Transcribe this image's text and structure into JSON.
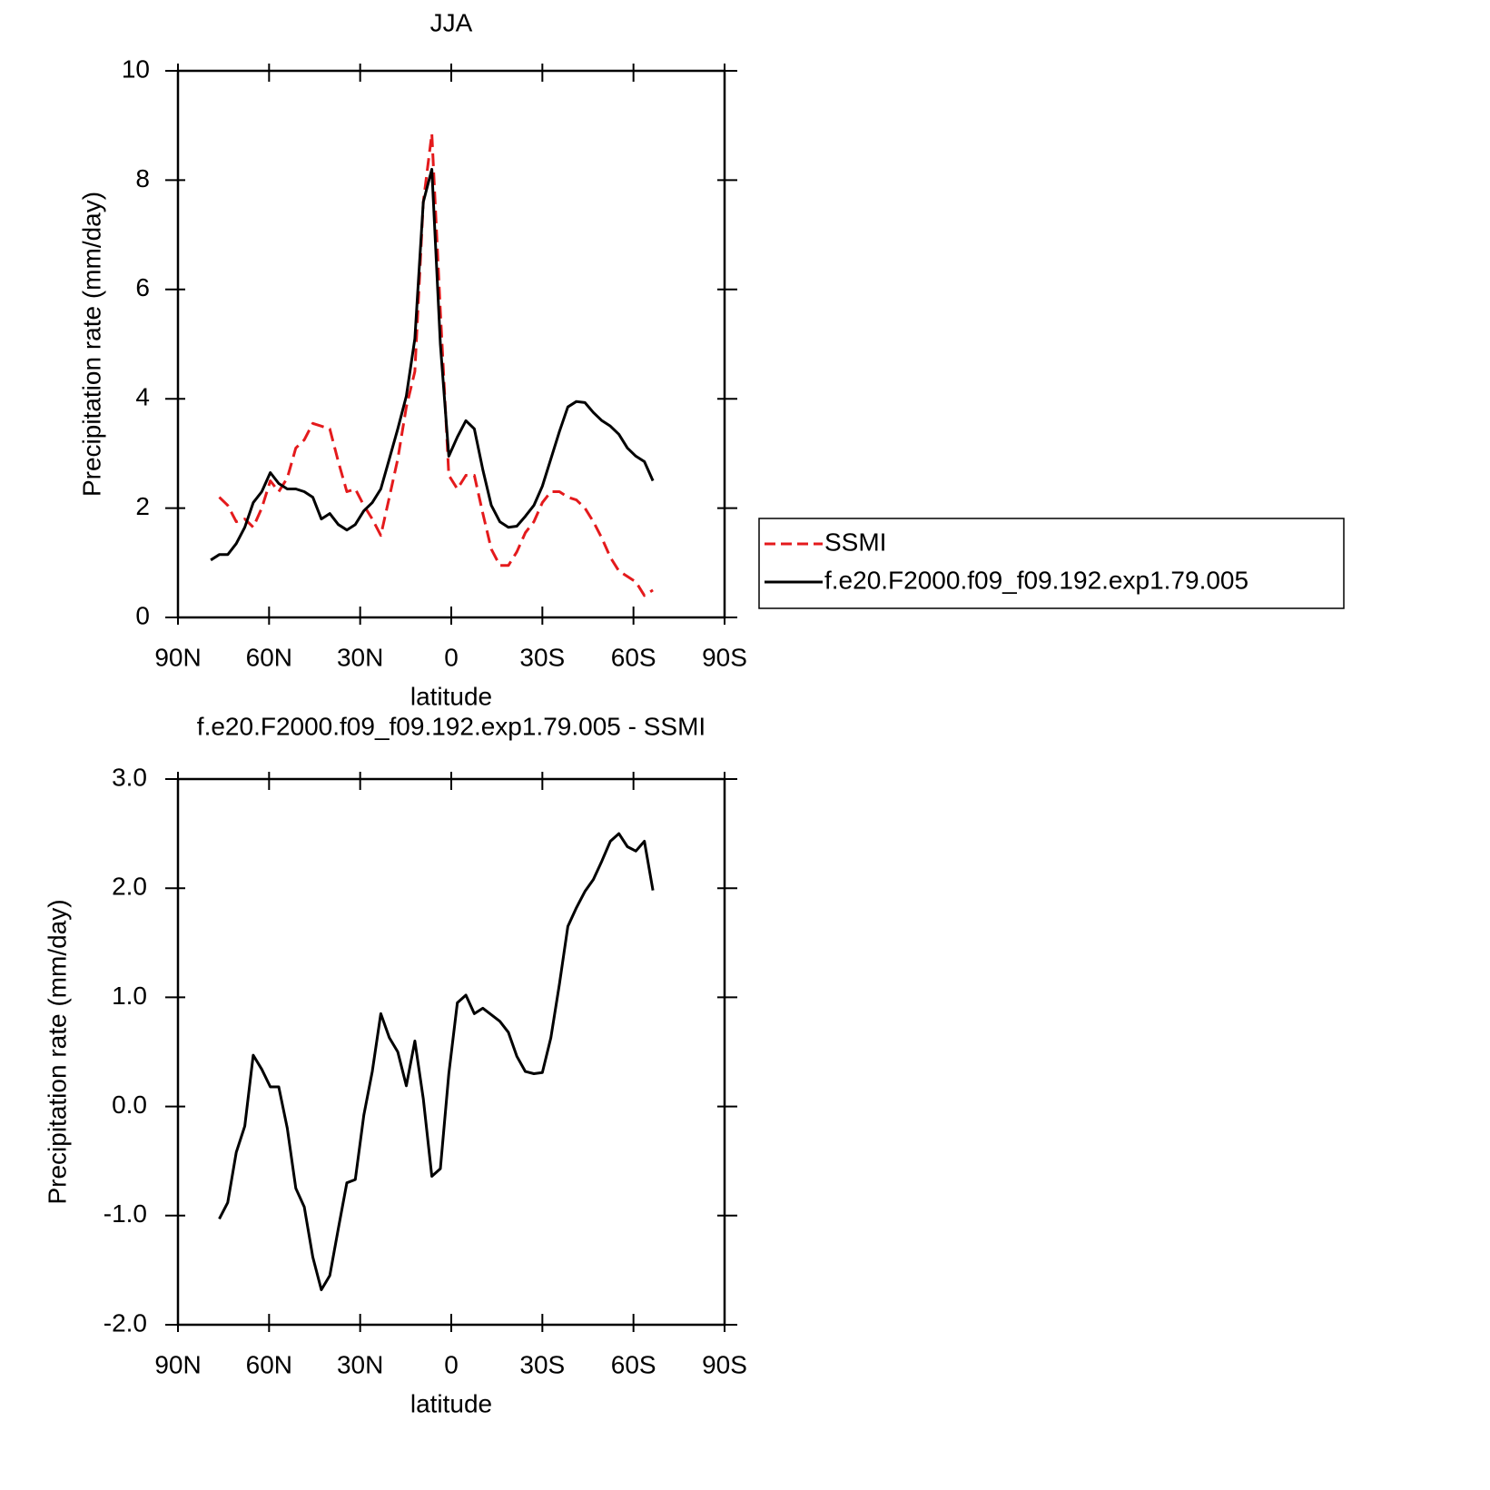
{
  "chart_data": [
    {
      "type": "line",
      "title": "JJA",
      "xlabel": "latitude",
      "ylabel": "Precipitation rate (mm/day)",
      "x": [
        79.2,
        76.4,
        73.6,
        70.8,
        68.0,
        65.2,
        62.4,
        59.6,
        56.8,
        54.0,
        51.2,
        48.4,
        45.6,
        42.8,
        40.0,
        37.2,
        34.4,
        31.6,
        28.8,
        26.0,
        23.2,
        20.4,
        17.6,
        14.8,
        12.0,
        9.2,
        6.4,
        3.6,
        0.8,
        -2.0,
        -4.8,
        -7.6,
        -10.4,
        -13.2,
        -16.0,
        -18.8,
        -21.6,
        -24.4,
        -27.2,
        -30.0,
        -32.8,
        -35.6,
        -38.4,
        -41.2,
        -44.0,
        -46.8,
        -49.6,
        -52.4,
        -55.2,
        -58.0,
        -60.8,
        -63.6,
        -66.4
      ],
      "series": [
        {
          "name": "SSMI",
          "color": "#e41a1c",
          "dash": true,
          "values": [
            null,
            2.2,
            2.05,
            1.75,
            1.8,
            1.65,
            2.0,
            2.5,
            2.3,
            2.55,
            3.1,
            3.25,
            3.55,
            3.5,
            3.45,
            2.85,
            2.3,
            2.35,
            2.05,
            1.8,
            1.5,
            2.2,
            2.9,
            3.85,
            4.5,
            7.6,
            8.85,
            5.6,
            2.6,
            2.35,
            2.6,
            2.6,
            1.9,
            1.25,
            0.95,
            0.95,
            1.2,
            1.55,
            1.75,
            2.1,
            2.3,
            2.3,
            2.2,
            2.15,
            2.0,
            1.75,
            1.45,
            1.1,
            0.85,
            0.75,
            0.65,
            0.4,
            0.5
          ]
        },
        {
          "name": "f.e20.F2000.f09_f09.192.exp1.79.005",
          "color": "#000000",
          "dash": false,
          "values": [
            1.05,
            1.15,
            1.15,
            1.35,
            1.65,
            2.1,
            2.3,
            2.65,
            2.45,
            2.35,
            2.35,
            2.3,
            2.2,
            1.8,
            1.9,
            1.7,
            1.6,
            1.7,
            1.95,
            2.1,
            2.35,
            2.9,
            3.45,
            4.05,
            5.1,
            7.6,
            8.2,
            5.0,
            2.95,
            3.3,
            3.6,
            3.45,
            2.7,
            2.05,
            1.75,
            1.65,
            1.67,
            1.85,
            2.05,
            2.4,
            2.9,
            3.4,
            3.85,
            3.95,
            3.93,
            3.75,
            3.6,
            3.5,
            3.35,
            3.1,
            2.95,
            2.85,
            2.5
          ]
        }
      ],
      "xlim": [
        90,
        -90
      ],
      "xticks": [
        {
          "value": 90,
          "label": "90N"
        },
        {
          "value": 60,
          "label": "60N"
        },
        {
          "value": 30,
          "label": "30N"
        },
        0,
        {
          "value": -30,
          "label": "30S"
        },
        {
          "value": -60,
          "label": "60S"
        },
        {
          "value": -90,
          "label": "90S"
        }
      ],
      "ylim": [
        0,
        10
      ],
      "yticks": [
        0,
        2,
        4,
        6,
        8,
        10
      ],
      "legend": "outside-right"
    },
    {
      "type": "line",
      "title": "f.e20.F2000.f09_f09.192.exp1.79.005 - SSMI",
      "xlabel": "latitude",
      "ylabel": "Precipitation rate (mm/day)",
      "x": [
        79.2,
        76.4,
        73.6,
        70.8,
        68.0,
        65.2,
        62.4,
        59.6,
        56.8,
        54.0,
        51.2,
        48.4,
        45.6,
        42.8,
        40.0,
        37.2,
        34.4,
        31.6,
        28.8,
        26.0,
        23.2,
        20.4,
        17.6,
        14.8,
        12.0,
        9.2,
        6.4,
        3.6,
        0.8,
        -2.0,
        -4.8,
        -7.6,
        -10.4,
        -13.2,
        -16.0,
        -18.8,
        -21.6,
        -24.4,
        -27.2,
        -30.0,
        -32.8,
        -35.6,
        -38.4,
        -41.2,
        -44.0,
        -46.8,
        -49.6,
        -52.4,
        -55.2,
        -58.0,
        -60.8,
        -63.6,
        -66.4
      ],
      "color": "#000000",
      "values": [
        null,
        -1.03,
        -0.88,
        -0.42,
        -0.18,
        0.47,
        0.34,
        0.18,
        0.18,
        -0.2,
        -0.75,
        -0.92,
        -1.38,
        -1.68,
        -1.55,
        -1.12,
        -0.7,
        -0.67,
        -0.08,
        0.32,
        0.85,
        0.63,
        0.5,
        0.19,
        0.6,
        0.07,
        -0.64,
        -0.57,
        0.3,
        0.95,
        1.02,
        0.85,
        0.9,
        0.84,
        0.78,
        0.68,
        0.46,
        0.32,
        0.3,
        0.31,
        0.63,
        1.12,
        1.65,
        1.82,
        1.97,
        2.08,
        2.25,
        2.43,
        2.5,
        2.38,
        2.34,
        2.43,
        1.98
      ],
      "xlim": [
        90,
        -90
      ],
      "xticks": [
        {
          "value": 90,
          "label": "90N"
        },
        {
          "value": 60,
          "label": "60N"
        },
        {
          "value": 30,
          "label": "30N"
        },
        0,
        {
          "value": -30,
          "label": "30S"
        },
        {
          "value": -60,
          "label": "60S"
        },
        {
          "value": -90,
          "label": "90S"
        }
      ],
      "ylim": [
        -2,
        3
      ],
      "yticks": [
        {
          "value": -2,
          "label": "-2.0"
        },
        {
          "value": -1,
          "label": "-1.0"
        },
        {
          "value": 0,
          "label": "0.0"
        },
        {
          "value": 1,
          "label": "1.0"
        },
        {
          "value": 2,
          "label": "2.0"
        },
        {
          "value": 3,
          "label": "3.0"
        }
      ]
    }
  ]
}
